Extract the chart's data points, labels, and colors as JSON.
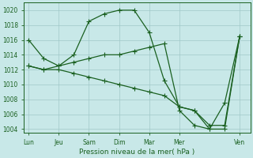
{
  "bg_color": "#c8e8e8",
  "grid_color": "#a0c8c8",
  "line_color": "#1a6020",
  "xlabel": "Pression niveau de la mer( hPa )",
  "ylim": [
    1003.5,
    1021.0
  ],
  "yticks": [
    1004,
    1006,
    1008,
    1010,
    1012,
    1014,
    1016,
    1018,
    1020
  ],
  "xtick_labels": [
    "Lun",
    "Jeu",
    "Sam",
    "Dim",
    "Mar",
    "Mer",
    "Ven"
  ],
  "xtick_positions": [
    0,
    1,
    2,
    3,
    4,
    5,
    7
  ],
  "xlim": [
    -0.15,
    7.35
  ],
  "line1_x": [
    0,
    0.5,
    1.0,
    1.5,
    2.0,
    2.5,
    3.0,
    3.5,
    4.0,
    4.5,
    5.0,
    5.5,
    6.0,
    6.5,
    7.0
  ],
  "line1_y": [
    1016,
    1013.5,
    1012.5,
    1014.0,
    1018.5,
    1019.5,
    1020,
    1020,
    1017,
    1010.5,
    1007.0,
    1006.5,
    1004.0,
    1004.0,
    1016.5
  ],
  "line2_x": [
    0,
    0.5,
    1.0,
    1.5,
    2.0,
    2.5,
    3.0,
    3.5,
    4.0,
    4.5,
    5.0,
    5.5,
    6.0,
    6.5,
    7.0
  ],
  "line2_y": [
    1012.5,
    1012.0,
    1012.5,
    1013.0,
    1013.5,
    1014.0,
    1014.0,
    1014.5,
    1015.0,
    1015.5,
    1006.5,
    1004.5,
    1004.0,
    1007.5,
    1016.5
  ],
  "line3_x": [
    0,
    0.5,
    1.0,
    1.5,
    2.0,
    2.5,
    3.0,
    3.5,
    4.0,
    4.5,
    5.0,
    5.5,
    6.0,
    6.5,
    7.0
  ],
  "line3_y": [
    1012.5,
    1012.0,
    1012.0,
    1011.5,
    1011.0,
    1010.5,
    1010.0,
    1009.5,
    1009.0,
    1008.5,
    1007.0,
    1006.5,
    1004.5,
    1004.5,
    1016.5
  ]
}
